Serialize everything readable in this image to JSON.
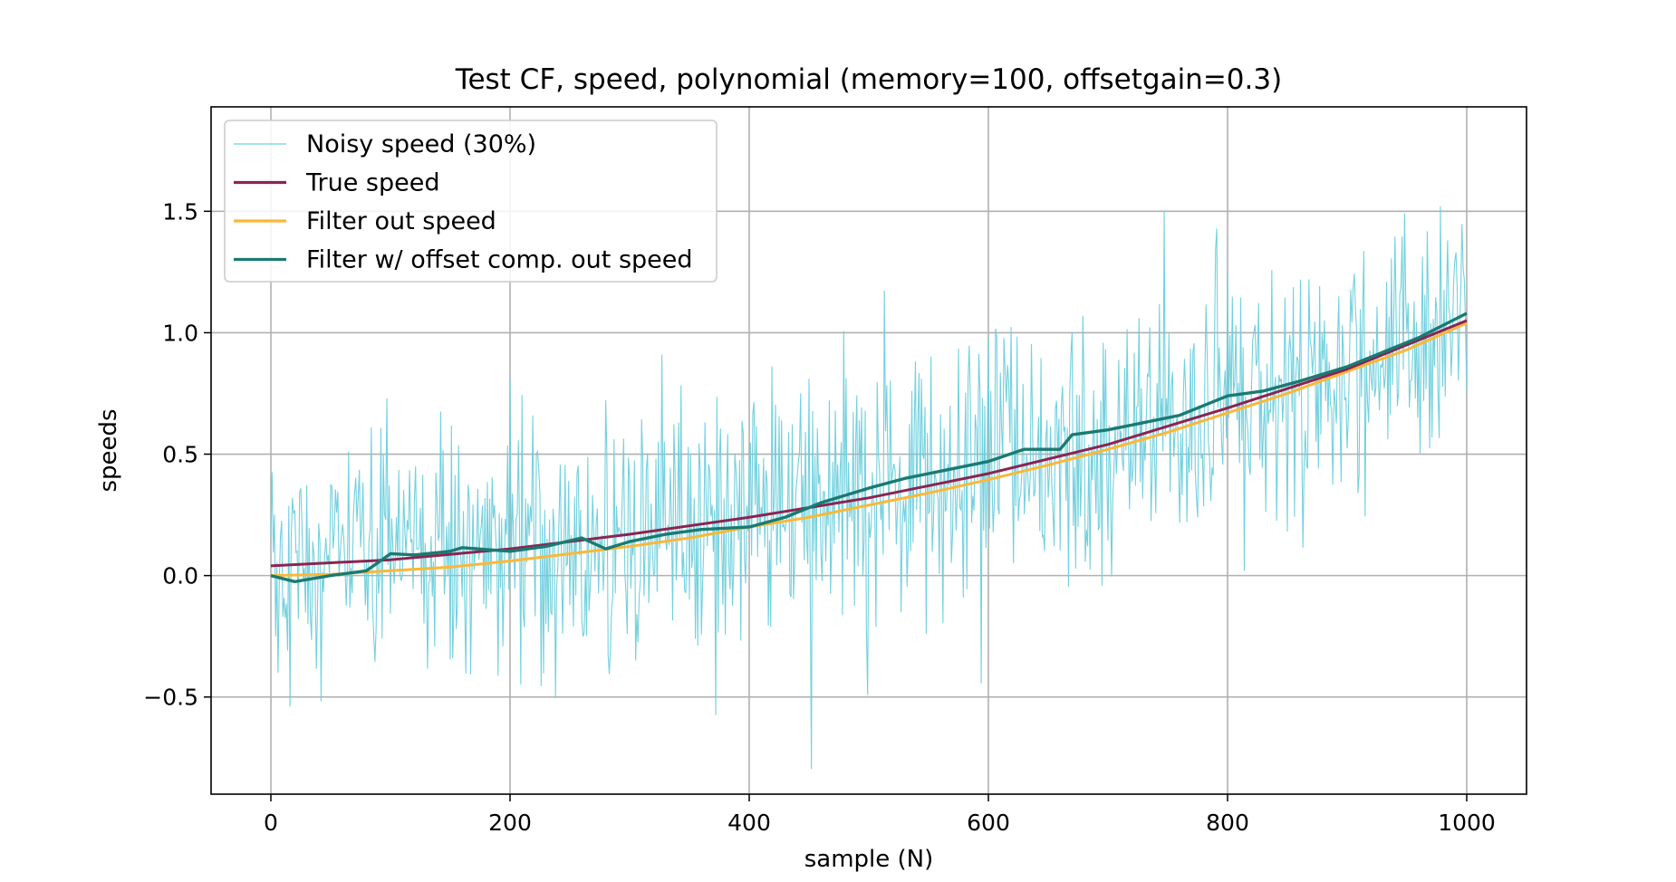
{
  "chart_data": {
    "type": "line",
    "title": "Test CF, speed, polynomial (memory=100, offsetgain=0.3)",
    "xlabel": "sample (N)",
    "ylabel": "speeds",
    "xlim": [
      -50,
      1050
    ],
    "ylim": [
      -0.9,
      1.93
    ],
    "xticks": [
      0,
      200,
      400,
      600,
      800,
      1000
    ],
    "yticks": [
      -0.5,
      0.0,
      0.5,
      1.0,
      1.5
    ],
    "xtick_labels": [
      "0",
      "200",
      "400",
      "600",
      "800",
      "1000"
    ],
    "ytick_labels": [
      "−0.5",
      "0.0",
      "0.5",
      "1.0",
      "1.5"
    ],
    "grid": true,
    "legend_position": "upper-left",
    "colors": {
      "noisy": "#6ccfdc",
      "true": "#8b2452",
      "filter": "#fbb737",
      "offset": "#1a7a72"
    },
    "series": [
      {
        "name": "Noisy speed (30%)",
        "key": "noisy",
        "noise_amplitude_fraction": 0.3,
        "x_range": [
          0,
          1000
        ]
      },
      {
        "name": "True speed",
        "key": "true",
        "x": [
          0,
          100,
          200,
          300,
          400,
          500,
          600,
          700,
          800,
          900,
          1000
        ],
        "y": [
          0.04,
          0.065,
          0.11,
          0.17,
          0.24,
          0.32,
          0.42,
          0.54,
          0.69,
          0.85,
          1.05
        ]
      },
      {
        "name": "Filter out speed",
        "key": "filter",
        "x": [
          0,
          50,
          100,
          150,
          200,
          250,
          300,
          350,
          400,
          450,
          500,
          550,
          600,
          650,
          700,
          750,
          800,
          850,
          900,
          950,
          1000
        ],
        "y": [
          0.0,
          0.005,
          0.02,
          0.035,
          0.06,
          0.09,
          0.12,
          0.155,
          0.2,
          0.24,
          0.29,
          0.34,
          0.395,
          0.455,
          0.52,
          0.59,
          0.67,
          0.75,
          0.84,
          0.93,
          1.04
        ]
      },
      {
        "name": "Filter w/ offset comp. out speed",
        "key": "offset",
        "x": [
          0,
          20,
          50,
          80,
          100,
          120,
          150,
          160,
          200,
          230,
          260,
          280,
          300,
          330,
          360,
          400,
          430,
          460,
          500,
          530,
          560,
          600,
          630,
          660,
          670,
          700,
          730,
          760,
          800,
          830,
          860,
          900,
          930,
          960,
          1000
        ],
        "y": [
          0.0,
          -0.025,
          0.0,
          0.02,
          0.09,
          0.085,
          0.1,
          0.115,
          0.1,
          0.12,
          0.155,
          0.11,
          0.14,
          0.17,
          0.19,
          0.2,
          0.24,
          0.3,
          0.36,
          0.4,
          0.43,
          0.47,
          0.52,
          0.52,
          0.58,
          0.6,
          0.63,
          0.66,
          0.74,
          0.76,
          0.8,
          0.86,
          0.92,
          0.98,
          1.08
        ]
      }
    ]
  }
}
